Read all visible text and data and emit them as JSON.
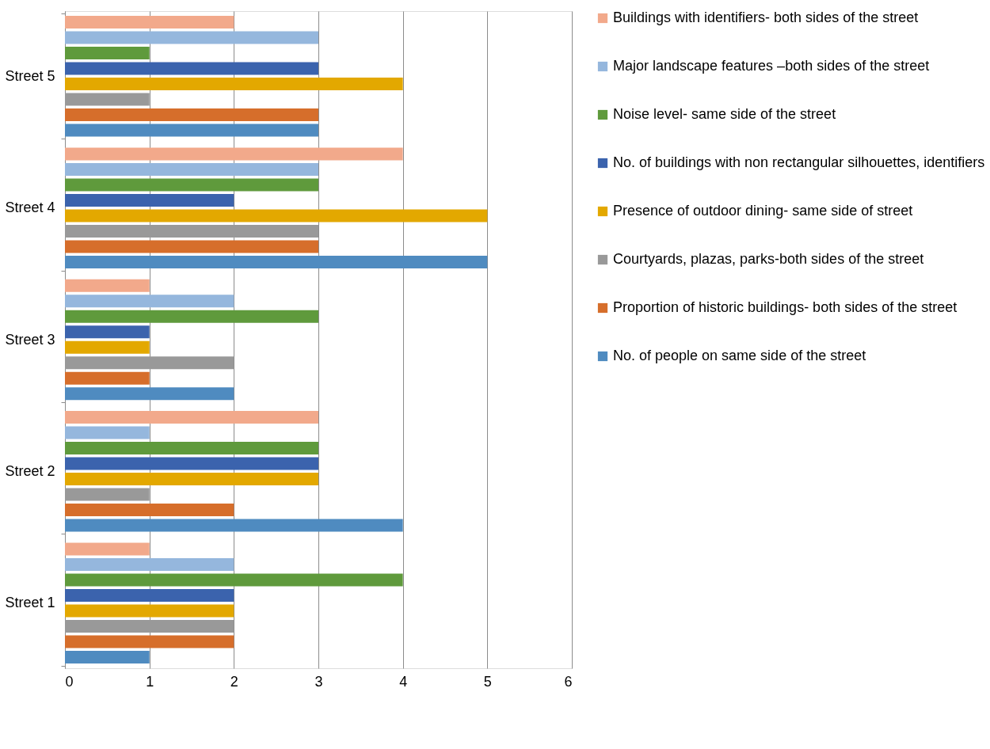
{
  "chart_data": {
    "type": "bar",
    "orientation": "horizontal",
    "categories": [
      "Street 5",
      "Street 4",
      "Street 3",
      "Street 2",
      "Street 1"
    ],
    "series": [
      {
        "name": "Buildings with identifiers- both sides of the street",
        "color": "#f2a98b",
        "values": [
          2,
          4,
          1,
          3,
          1
        ]
      },
      {
        "name": "Major landscape features –both sides of the street",
        "color": "#95b7dd",
        "values": [
          3,
          3,
          2,
          1,
          2
        ]
      },
      {
        "name": "Noise level- same side of the street",
        "color": "#5f9a3c",
        "values": [
          1,
          3,
          3,
          3,
          4
        ]
      },
      {
        "name": "No. of buildings with non rectangular silhouettes, identifiers",
        "color": "#3b63ad",
        "values": [
          3,
          2,
          1,
          3,
          2
        ]
      },
      {
        "name": "Presence of outdoor dining- same side of street",
        "color": "#e3a800",
        "values": [
          4,
          5,
          1,
          3,
          2
        ]
      },
      {
        "name": "Courtyards, plazas, parks-both sides of the street",
        "color": "#999999",
        "values": [
          1,
          3,
          2,
          1,
          2
        ]
      },
      {
        "name": "Proportion of historic buildings- both sides of the street",
        "color": "#d66e2b",
        "values": [
          3,
          3,
          1,
          2,
          2
        ]
      },
      {
        "name": "No. of people on same side of the street",
        "color": "#4f8bc0",
        "values": [
          3,
          5,
          2,
          4,
          1
        ]
      }
    ],
    "xlim": [
      0,
      6
    ],
    "xticks": [
      0,
      1,
      2,
      3,
      4,
      5,
      6
    ],
    "grid": "x",
    "legend": "right"
  }
}
